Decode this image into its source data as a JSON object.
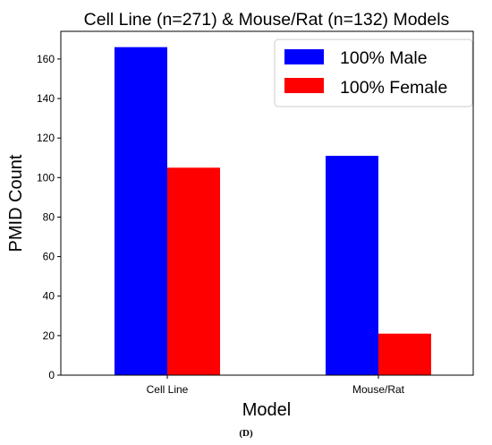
{
  "colors": {
    "male": "#0000ff",
    "female": "#ff0000",
    "axis": "#000000"
  },
  "chart_data": {
    "type": "bar",
    "title": "Cell Line (n=271) & Mouse/Rat (n=132) Models",
    "xlabel": "Model",
    "ylabel": "PMID Count",
    "categories": [
      "Cell Line",
      "Mouse/Rat"
    ],
    "series": [
      {
        "name": "100% Male",
        "color": "#0000ff",
        "values": [
          166,
          111
        ]
      },
      {
        "name": "100% Female",
        "color": "#ff0000",
        "values": [
          105,
          21
        ]
      }
    ],
    "ylim": [
      0,
      174
    ],
    "yticks": [
      0,
      20,
      40,
      60,
      80,
      100,
      120,
      140,
      160
    ],
    "grid": false,
    "legend": "top-right"
  },
  "caption": "(D)"
}
